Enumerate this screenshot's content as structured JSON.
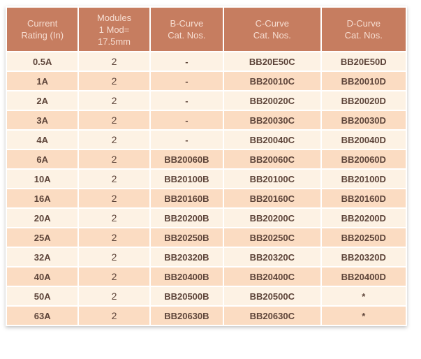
{
  "colors": {
    "page_bg": "#ffffff",
    "header_bg": "#c67d60",
    "header_text": "#f6ddd1",
    "row_light": "#fdf2e4",
    "row_dark": "#fbdcc2",
    "cell_text": "#5e453a"
  },
  "table": {
    "headers": [
      "Current\nRating (In)",
      "Modules\n1 Mod=\n17.5mm",
      "B-Curve\nCat. Nos.",
      "C-Curve\nCat. Nos.",
      "D-Curve\nCat. Nos."
    ],
    "rows": [
      {
        "current_rating": "0.5A",
        "modules": "2",
        "b_curve": "-",
        "c_curve": "BB20E50C",
        "d_curve": "BB20E50D"
      },
      {
        "current_rating": "1A",
        "modules": "2",
        "b_curve": "-",
        "c_curve": "BB20010C",
        "d_curve": "BB20010D"
      },
      {
        "current_rating": "2A",
        "modules": "2",
        "b_curve": "-",
        "c_curve": "BB20020C",
        "d_curve": "BB20020D"
      },
      {
        "current_rating": "3A",
        "modules": "2",
        "b_curve": "-",
        "c_curve": "BB20030C",
        "d_curve": "BB20030D"
      },
      {
        "current_rating": "4A",
        "modules": "2",
        "b_curve": "-",
        "c_curve": "BB20040C",
        "d_curve": "BB20040D"
      },
      {
        "current_rating": "6A",
        "modules": "2",
        "b_curve": "BB20060B",
        "c_curve": "BB20060C",
        "d_curve": "BB20060D"
      },
      {
        "current_rating": "10A",
        "modules": "2",
        "b_curve": "BB20100B",
        "c_curve": "BB20100C",
        "d_curve": "BB20100D"
      },
      {
        "current_rating": "16A",
        "modules": "2",
        "b_curve": "BB20160B",
        "c_curve": "BB20160C",
        "d_curve": "BB20160D"
      },
      {
        "current_rating": "20A",
        "modules": "2",
        "b_curve": "BB20200B",
        "c_curve": "BB20200C",
        "d_curve": "BB20200D"
      },
      {
        "current_rating": "25A",
        "modules": "2",
        "b_curve": "BB20250B",
        "c_curve": "BB20250C",
        "d_curve": "BB20250D"
      },
      {
        "current_rating": "32A",
        "modules": "2",
        "b_curve": "BB20320B",
        "c_curve": "BB20320C",
        "d_curve": "BB20320D"
      },
      {
        "current_rating": "40A",
        "modules": "2",
        "b_curve": "BB20400B",
        "c_curve": "BB20400C",
        "d_curve": "BB20400D"
      },
      {
        "current_rating": "50A",
        "modules": "2",
        "b_curve": "BB20500B",
        "c_curve": "BB20500C",
        "d_curve": "*"
      },
      {
        "current_rating": "63A",
        "modules": "2",
        "b_curve": "BB20630B",
        "c_curve": "BB20630C",
        "d_curve": "*"
      }
    ]
  }
}
